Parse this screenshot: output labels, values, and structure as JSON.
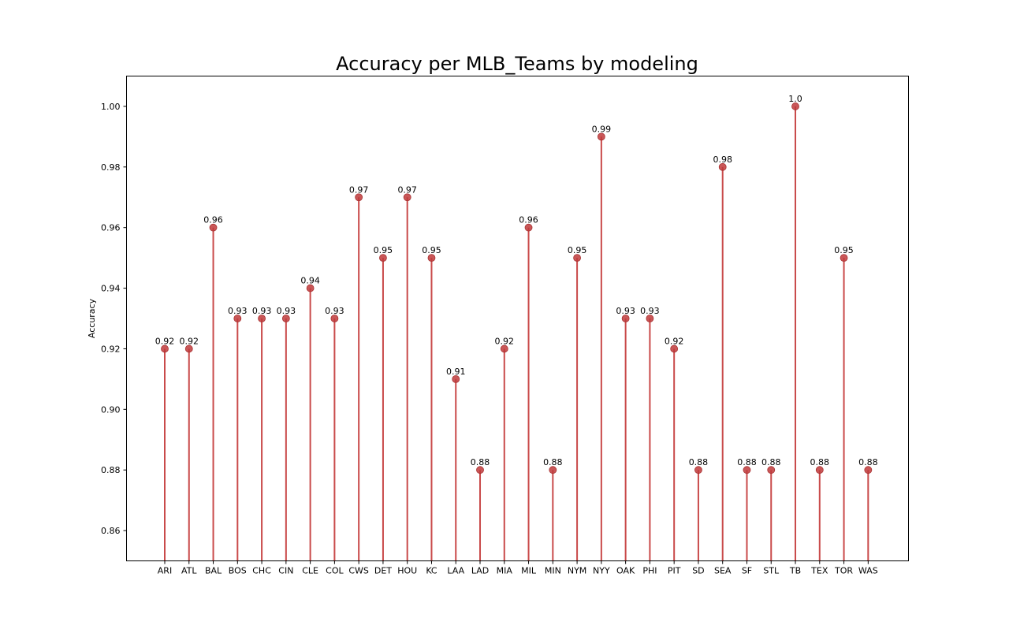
{
  "chart_data": {
    "type": "lollipop",
    "title": "Accuracy per MLB_Teams by modeling",
    "xlabel": "",
    "ylabel": "Accuracy",
    "categories": [
      "ARI",
      "ATL",
      "BAL",
      "BOS",
      "CHC",
      "CIN",
      "CLE",
      "COL",
      "CWS",
      "DET",
      "HOU",
      "KC",
      "LAA",
      "LAD",
      "MIA",
      "MIL",
      "MIN",
      "NYM",
      "NYY",
      "OAK",
      "PHI",
      "PIT",
      "SD",
      "SEA",
      "SF",
      "STL",
      "TB",
      "TEX",
      "TOR",
      "WAS"
    ],
    "values": [
      0.92,
      0.92,
      0.96,
      0.93,
      0.93,
      0.93,
      0.94,
      0.93,
      0.97,
      0.95,
      0.97,
      0.95,
      0.91,
      0.88,
      0.92,
      0.96,
      0.88,
      0.95,
      0.99,
      0.93,
      0.93,
      0.92,
      0.88,
      0.98,
      0.88,
      0.88,
      1.0,
      0.88,
      0.95,
      0.88
    ],
    "value_labels": [
      "0.92",
      "0.92",
      "0.96",
      "0.93",
      "0.93",
      "0.93",
      "0.94",
      "0.93",
      "0.97",
      "0.95",
      "0.97",
      "0.95",
      "0.91",
      "0.88",
      "0.92",
      "0.96",
      "0.88",
      "0.95",
      "0.99",
      "0.93",
      "0.93",
      "0.92",
      "0.88",
      "0.98",
      "0.88",
      "0.88",
      "1.0",
      "0.88",
      "0.95",
      "0.88"
    ],
    "ylim": [
      0.85,
      1.01
    ],
    "yticks": [
      0.86,
      0.88,
      0.9,
      0.92,
      0.94,
      0.96,
      0.98,
      1.0
    ],
    "ytick_labels": [
      "0.86",
      "0.88",
      "0.90",
      "0.92",
      "0.94",
      "0.96",
      "0.98",
      "1.00"
    ],
    "grid": false,
    "colors": {
      "stem": "#c94a4a",
      "marker": "#c0393b"
    }
  }
}
